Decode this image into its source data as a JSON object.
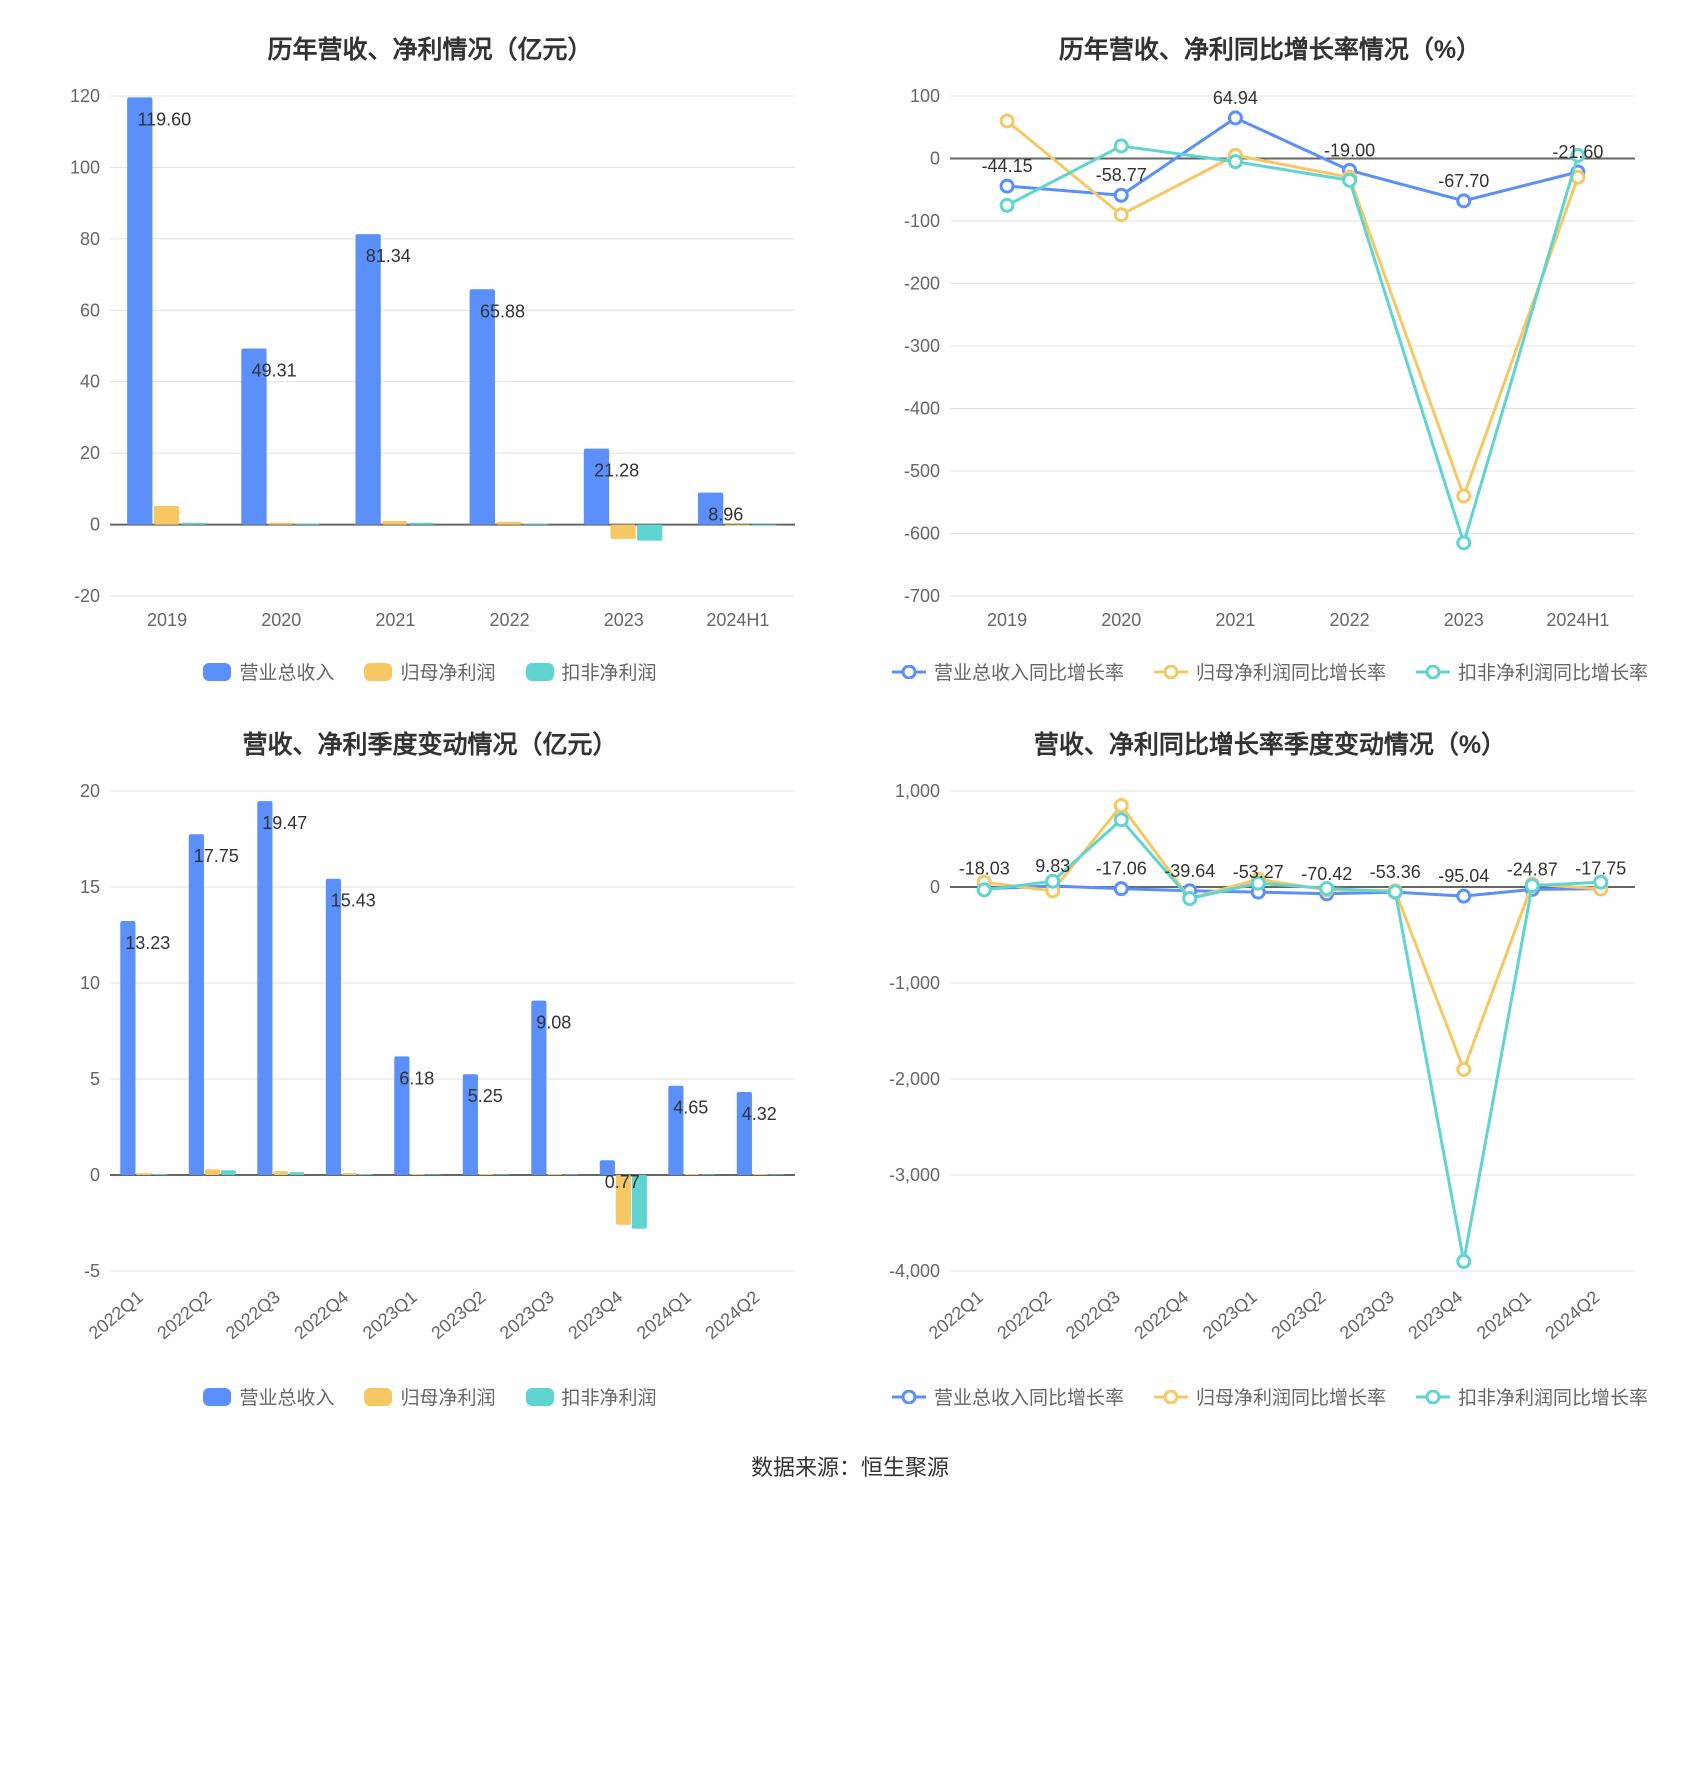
{
  "footer": "数据来源：恒生聚源",
  "colors": {
    "blue": "#5b8ff9",
    "yellow": "#f6c863",
    "teal": "#5fd4d0",
    "grid": "#e0e0e0",
    "axis": "#666666",
    "text": "#333333",
    "label": "#666666"
  },
  "chart1": {
    "title": "历年营收、净利情况（亿元）",
    "type": "bar",
    "categories": [
      "2019",
      "2020",
      "2021",
      "2022",
      "2023",
      "2024H1"
    ],
    "series": [
      {
        "name": "营业总收入",
        "color": "#5b8ff9",
        "values": [
          119.6,
          49.31,
          81.34,
          65.88,
          21.28,
          8.96
        ]
      },
      {
        "name": "归母净利润",
        "color": "#f6c863",
        "values": [
          5.2,
          0.5,
          1.0,
          0.8,
          -4.0,
          -0.3
        ]
      },
      {
        "name": "扣非净利润",
        "color": "#5fd4d0",
        "values": [
          0.5,
          0.3,
          0.5,
          0.3,
          -4.5,
          -0.3
        ]
      }
    ],
    "value_labels": [
      "119.60",
      "49.31",
      "81.34",
      "65.88",
      "21.28",
      "8.96"
    ],
    "ylim": [
      -20,
      120
    ],
    "yticks": [
      -20,
      0,
      20,
      40,
      60,
      80,
      100,
      120
    ],
    "bar_group_width": 0.7,
    "title_fontsize": 25,
    "label_fontsize": 18
  },
  "chart2": {
    "title": "历年营收、净利同比增长率情况（%）",
    "type": "line",
    "categories": [
      "2019",
      "2020",
      "2021",
      "2022",
      "2023",
      "2024H1"
    ],
    "series": [
      {
        "name": "营业总收入同比增长率",
        "color": "#5b8ff9",
        "values": [
          -44.15,
          -58.77,
          64.94,
          -19.0,
          -67.7,
          -21.6
        ]
      },
      {
        "name": "归母净利润同比增长率",
        "color": "#f6c863",
        "values": [
          60,
          -90,
          5,
          -30,
          -540,
          -30
        ]
      },
      {
        "name": "扣非净利润同比增长率",
        "color": "#5fd4d0",
        "values": [
          -75,
          20,
          -5,
          -35,
          -615,
          5
        ]
      }
    ],
    "point_labels": {
      "0": "-44.15",
      "1": "-58.77",
      "2": "64.94",
      "3": "-19.00",
      "4": "-67.70",
      "5": "-21.60"
    },
    "ylim": [
      -700,
      100
    ],
    "yticks": [
      -700,
      -600,
      -500,
      -400,
      -300,
      -200,
      -100,
      0,
      100
    ],
    "title_fontsize": 25,
    "marker_radius": 6,
    "line_width": 3
  },
  "chart3": {
    "title": "营收、净利季度变动情况（亿元）",
    "type": "bar",
    "categories": [
      "2022Q1",
      "2022Q2",
      "2022Q3",
      "2022Q4",
      "2023Q1",
      "2023Q2",
      "2023Q3",
      "2023Q4",
      "2024Q1",
      "2024Q2"
    ],
    "series": [
      {
        "name": "营业总收入",
        "color": "#5b8ff9",
        "values": [
          13.23,
          17.75,
          19.47,
          15.43,
          6.18,
          5.25,
          9.08,
          0.77,
          4.65,
          4.32
        ]
      },
      {
        "name": "归母净利润",
        "color": "#f6c863",
        "values": [
          0.1,
          0.3,
          0.2,
          0.1,
          0.05,
          0.05,
          0.05,
          -2.6,
          0.05,
          0.05
        ]
      },
      {
        "name": "扣非净利润",
        "color": "#5fd4d0",
        "values": [
          0.05,
          0.25,
          0.15,
          0.05,
          0.03,
          0.03,
          0.03,
          -2.8,
          0.03,
          0.03
        ]
      }
    ],
    "value_labels": [
      "13.23",
      "17.75",
      "19.47",
      "15.43",
      "6.18",
      "5.25",
      "9.08",
      "0.77",
      "4.65",
      "4.32"
    ],
    "ylim": [
      -5,
      20
    ],
    "yticks": [
      -5,
      0,
      5,
      10,
      15,
      20
    ],
    "bar_group_width": 0.7,
    "xlabel_rotate": -40
  },
  "chart4": {
    "title": "营收、净利同比增长率季度变动情况（%）",
    "type": "line",
    "categories": [
      "2022Q1",
      "2022Q2",
      "2022Q3",
      "2022Q4",
      "2023Q1",
      "2023Q2",
      "2023Q3",
      "2023Q4",
      "2024Q1",
      "2024Q2"
    ],
    "series": [
      {
        "name": "营业总收入同比增长率",
        "color": "#5b8ff9",
        "values": [
          -18.03,
          9.83,
          -17.06,
          -39.64,
          -53.27,
          -70.42,
          -53.36,
          -95.04,
          -24.87,
          -17.75
        ]
      },
      {
        "name": "归母净利润同比增长率",
        "color": "#f6c863",
        "values": [
          50,
          -40,
          850,
          -120,
          80,
          -30,
          -40,
          -1900,
          30,
          -20
        ]
      },
      {
        "name": "扣非净利润同比增长率",
        "color": "#5fd4d0",
        "values": [
          -30,
          60,
          700,
          -120,
          40,
          -15,
          -50,
          -3900,
          15,
          50
        ]
      }
    ],
    "point_labels": {
      "0": "-18.03",
      "1": "9.83",
      "2": "-17.06",
      "3": "-39.64",
      "4": "-53.27",
      "5": "-70.42",
      "6": "-53.36",
      "7": "-95.04",
      "8": "-24.87",
      "9": "-17.75"
    },
    "ylim": [
      -4000,
      1000
    ],
    "yticks": [
      -4000,
      -3000,
      -2000,
      -1000,
      0,
      1000
    ],
    "marker_radius": 6,
    "line_width": 3,
    "xlabel_rotate": -40
  }
}
